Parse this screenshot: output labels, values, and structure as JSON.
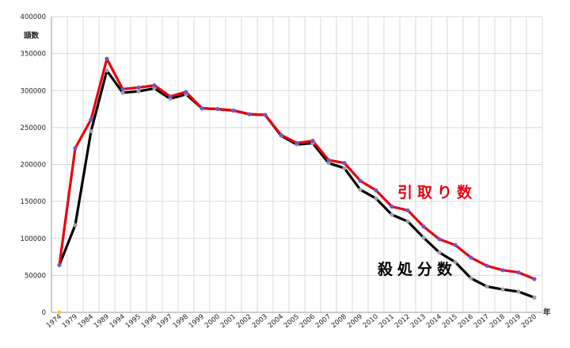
{
  "chart_data": {
    "type": "line",
    "ylabel": "頭数",
    "xlabel": "年",
    "ylim": [
      0,
      400000
    ],
    "yticks": [
      0,
      50000,
      100000,
      150000,
      200000,
      250000,
      300000,
      350000,
      400000
    ],
    "grid": "both",
    "categories": [
      "1974",
      "1979",
      "1984",
      "1989",
      "1994",
      "1995",
      "1996",
      "1997",
      "1998",
      "1999",
      "2000",
      "2001",
      "2002",
      "2003",
      "2004",
      "2005",
      "2006",
      "2007",
      "2008",
      "2009",
      "2010",
      "2011",
      "2012",
      "2013",
      "2014",
      "2015",
      "2016",
      "2017",
      "2018",
      "2019",
      "2020"
    ],
    "series": [
      {
        "name": "引取り数",
        "color": "#e8000f",
        "marker_color": "#6a5acd",
        "values": [
          64000,
          222000,
          261000,
          343000,
          302000,
          304000,
          307000,
          292000,
          298000,
          276000,
          275000,
          273000,
          268000,
          267000,
          240000,
          229000,
          232000,
          206000,
          202000,
          178000,
          165000,
          143000,
          138000,
          116000,
          99000,
          91000,
          74000,
          63000,
          57000,
          54000,
          45000
        ]
      },
      {
        "name": "殺処分数",
        "color": "#000000",
        "marker_color": "#a0a0a8",
        "values": [
          64000,
          118000,
          245000,
          327000,
          297000,
          299000,
          303000,
          289000,
          295000,
          276000,
          275000,
          273000,
          268000,
          267000,
          239000,
          227000,
          229000,
          202000,
          195000,
          166000,
          154000,
          132000,
          123000,
          101000,
          81000,
          68000,
          46000,
          35000,
          31000,
          28000,
          20000
        ]
      }
    ],
    "origin_marker_color": "#ffd000"
  }
}
